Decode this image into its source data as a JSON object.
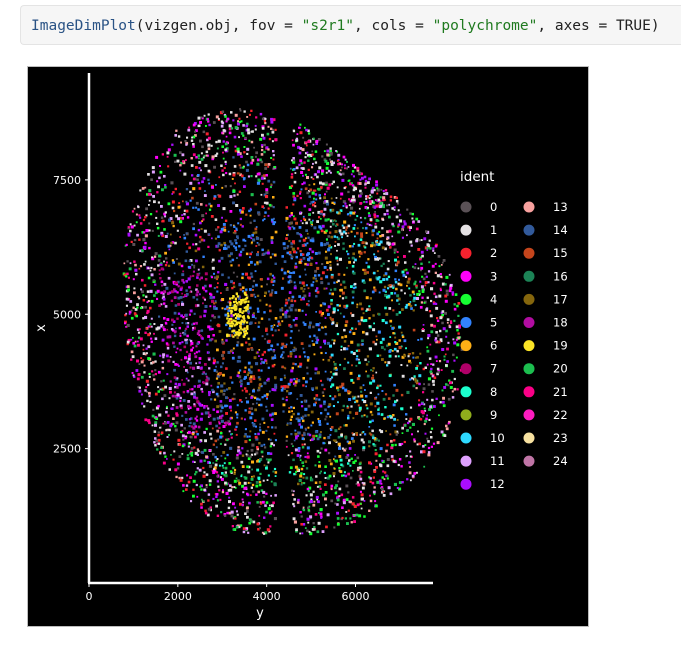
{
  "code": {
    "fn_name": "ImageDimPlot",
    "open": "(vizgen.obj, fov = ",
    "fov_value": "\"s2r1\"",
    "mid": ", cols = ",
    "cols_value": "\"polychrome\"",
    "close": ", axes = TRUE)"
  },
  "chart_data": {
    "type": "scatter",
    "title": "",
    "xlabel": "y",
    "ylabel": "x",
    "xlim": [
      0,
      7700
    ],
    "ylim": [
      0,
      9600
    ],
    "x_ticks": [
      {
        "value": 0,
        "label": "0"
      },
      {
        "value": 2000,
        "label": "2000"
      },
      {
        "value": 4000,
        "label": "4000"
      },
      {
        "value": 6000,
        "label": "6000"
      }
    ],
    "y_ticks": [
      {
        "value": 2500,
        "label": "2500"
      },
      {
        "value": 5000,
        "label": "5000"
      },
      {
        "value": 7500,
        "label": "7500"
      }
    ],
    "legend": {
      "title": "ident",
      "placement": "right",
      "entries": [
        {
          "label": "0",
          "color": "#5a5156"
        },
        {
          "label": "1",
          "color": "#e4e1e3"
        },
        {
          "label": "2",
          "color": "#f6222e"
        },
        {
          "label": "3",
          "color": "#fe00fa"
        },
        {
          "label": "4",
          "color": "#16ff32"
        },
        {
          "label": "5",
          "color": "#3283fe"
        },
        {
          "label": "6",
          "color": "#feaf16"
        },
        {
          "label": "7",
          "color": "#b00068"
        },
        {
          "label": "8",
          "color": "#1cffce"
        },
        {
          "label": "9",
          "color": "#90ad1c"
        },
        {
          "label": "10",
          "color": "#2ed9ff"
        },
        {
          "label": "11",
          "color": "#dea0fd"
        },
        {
          "label": "12",
          "color": "#aa0dfe"
        },
        {
          "label": "13",
          "color": "#f8a19f"
        },
        {
          "label": "14",
          "color": "#325a9b"
        },
        {
          "label": "15",
          "color": "#c4451c"
        },
        {
          "label": "16",
          "color": "#1c8356"
        },
        {
          "label": "17",
          "color": "#85660d"
        },
        {
          "label": "18",
          "color": "#b10da1"
        },
        {
          "label": "19",
          "color": "#fbe426"
        },
        {
          "label": "20",
          "color": "#1cbe4f"
        },
        {
          "label": "21",
          "color": "#fa0087"
        },
        {
          "label": "22",
          "color": "#fc1cbf"
        },
        {
          "label": "23",
          "color": "#f7e1a0"
        },
        {
          "label": "24",
          "color": "#c075a6"
        }
      ]
    },
    "background": "#000000",
    "grid": false
  }
}
